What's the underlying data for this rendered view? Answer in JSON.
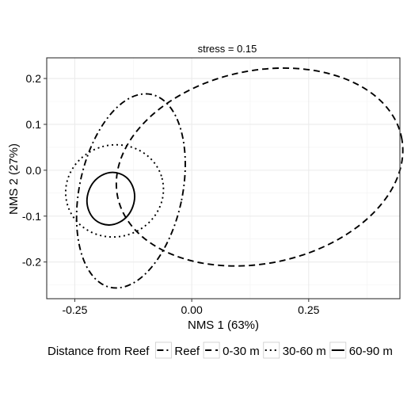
{
  "chart_data": {
    "type": "ellipse",
    "title": "stress = 0.15",
    "xlabel": "NMS 1 (63%)",
    "ylabel": "NMS 2 (27%)",
    "xlim": [
      -0.31,
      0.445
    ],
    "ylim": [
      -0.28,
      0.245
    ],
    "x_ticks": [
      -0.25,
      0.0,
      0.25
    ],
    "x_tick_labels": [
      "-0.25",
      "0.00",
      "0.25"
    ],
    "y_ticks": [
      -0.2,
      -0.1,
      0.0,
      0.1,
      0.2
    ],
    "y_tick_labels": [
      "-0.2",
      "-0.1",
      "0.0",
      "0.1",
      "0.2"
    ],
    "grid": true,
    "legend": {
      "title": "Distance from Reef",
      "position": "bottom",
      "entries": [
        "Reef",
        "0-30 m",
        "30-60 m",
        "60-90 m"
      ]
    },
    "series": [
      {
        "name": "Reef",
        "linestyle": "dashdot",
        "center": [
          -0.13,
          -0.045
        ],
        "rx": 0.11,
        "ry": 0.215,
        "angle": 12
      },
      {
        "name": "0-30 m",
        "linestyle": "dashed",
        "center": [
          0.145,
          0.007
        ],
        "rx": 0.31,
        "ry": 0.21,
        "angle": -12
      },
      {
        "name": "30-60 m",
        "linestyle": "dotted",
        "center": [
          -0.165,
          -0.045
        ],
        "rx": 0.105,
        "ry": 0.1,
        "angle": -15
      },
      {
        "name": "60-90 m",
        "linestyle": "solid",
        "center": [
          -0.173,
          -0.062
        ],
        "rx": 0.05,
        "ry": 0.058,
        "angle": 20
      }
    ],
    "colors": {
      "line": "#000000",
      "grid": "#ebebeb",
      "panel_border": "#333333"
    }
  }
}
